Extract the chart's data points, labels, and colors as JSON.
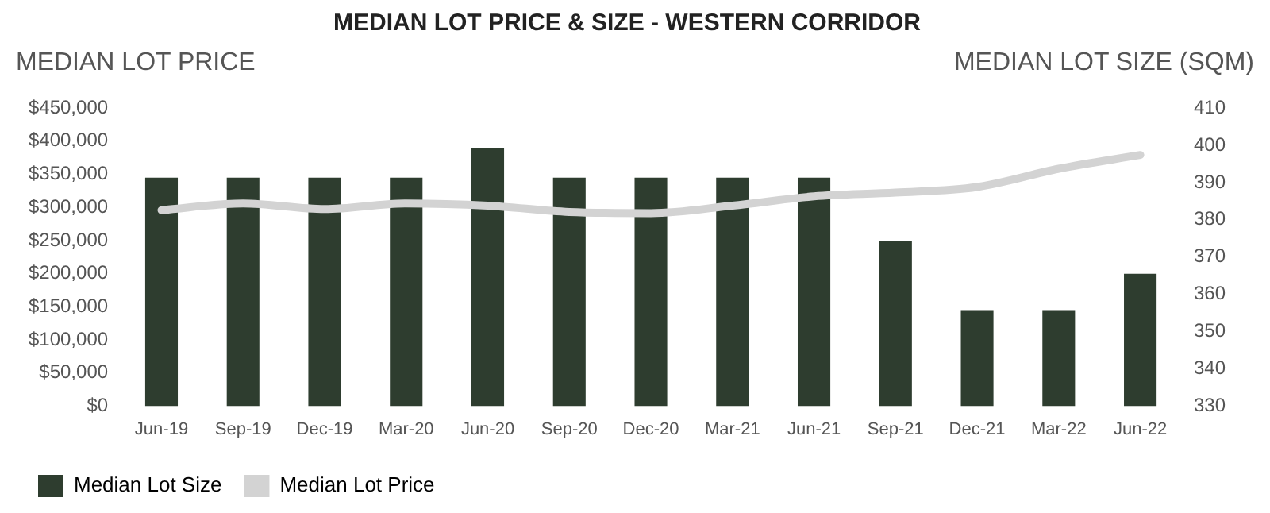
{
  "chart_data": {
    "type": "bar",
    "title": "MEDIAN LOT PRICE & SIZE - WESTERN CORRIDOR",
    "ylabel": "MEDIAN LOT PRICE",
    "y2label": "MEDIAN LOT SIZE (SQM)",
    "categories": [
      "Jun-19",
      "Sep-19",
      "Dec-19",
      "Mar-20",
      "Jun-20",
      "Sep-20",
      "Dec-20",
      "Mar-21",
      "Jun-21",
      "Sep-21",
      "Dec-21",
      "Mar-22",
      "Jun-22"
    ],
    "series": [
      {
        "name": "Median Lot Size",
        "color": "#2e3d2f",
        "values": [
          345000,
          345000,
          345000,
          345000,
          390000,
          345000,
          345000,
          345000,
          345000,
          250000,
          145000,
          145000,
          200000
        ]
      },
      {
        "name": "Median Lot Price",
        "type": "line",
        "axis": "y2",
        "color": "#d3d3d3",
        "values": [
          382.6,
          384.4,
          382.9,
          384.4,
          383.8,
          382.1,
          381.8,
          383.8,
          386.3,
          387.3,
          388.8,
          393.7,
          397.4
        ]
      }
    ],
    "ylim": [
      0,
      450000
    ],
    "yticks": [
      {
        "value": 0,
        "label": "$0"
      },
      {
        "value": 50000,
        "label": "$50,000"
      },
      {
        "value": 100000,
        "label": "$100,000"
      },
      {
        "value": 150000,
        "label": "$150,000"
      },
      {
        "value": 200000,
        "label": "$200,000"
      },
      {
        "value": 250000,
        "label": "$250,000"
      },
      {
        "value": 300000,
        "label": "$300,000"
      },
      {
        "value": 350000,
        "label": "$350,000"
      },
      {
        "value": 400000,
        "label": "$400,000"
      },
      {
        "value": 450000,
        "label": "$450,000"
      }
    ],
    "y2lim": [
      330,
      410
    ],
    "y2ticks": [
      330,
      340,
      350,
      360,
      370,
      380,
      390,
      400,
      410
    ],
    "grid": false,
    "legend": "bottom left",
    "marker": "none",
    "line_style": "solid"
  }
}
